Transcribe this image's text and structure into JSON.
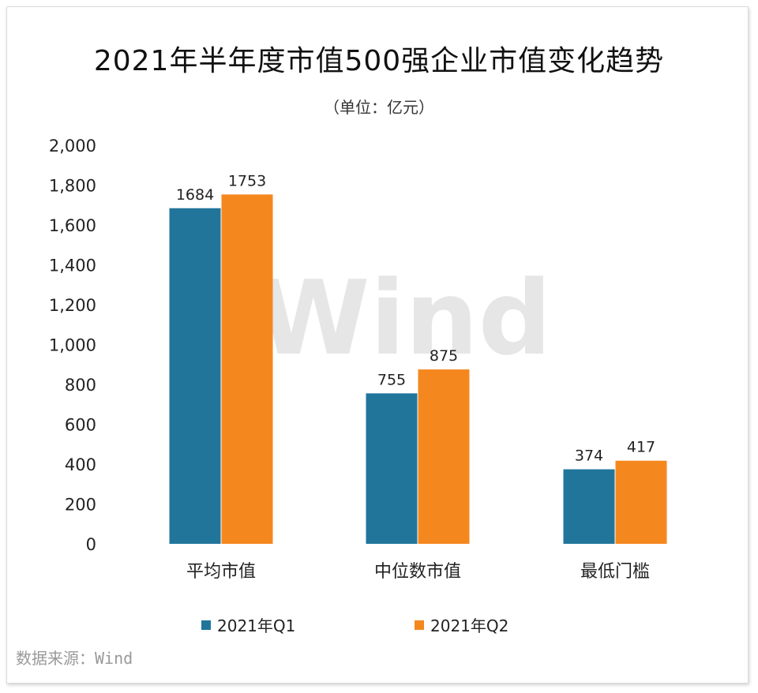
{
  "chart_data": {
    "type": "bar",
    "title": "2021年半年度市值500强企业市值变化趋势",
    "subtitle": "（单位：亿元）",
    "categories": [
      "平均市值",
      "中位数市值",
      "最低门槛"
    ],
    "series": [
      {
        "name": "2021年Q1",
        "color": "#21759b",
        "values": [
          1684,
          755,
          374
        ]
      },
      {
        "name": "2021年Q2",
        "color": "#f5871f",
        "values": [
          1753,
          875,
          417
        ]
      }
    ],
    "ylim": [
      0,
      2000
    ],
    "yticks": [
      0,
      200,
      400,
      600,
      800,
      1000,
      1200,
      1400,
      1600,
      1800,
      2000
    ],
    "ytick_labels": [
      "0",
      "200",
      "400",
      "600",
      "800",
      "1,000",
      "1,200",
      "1,400",
      "1,600",
      "1,800",
      "2,000"
    ],
    "legend_position": "bottom",
    "grid": false
  },
  "watermark": "Wind",
  "source": "数据来源：Wind"
}
